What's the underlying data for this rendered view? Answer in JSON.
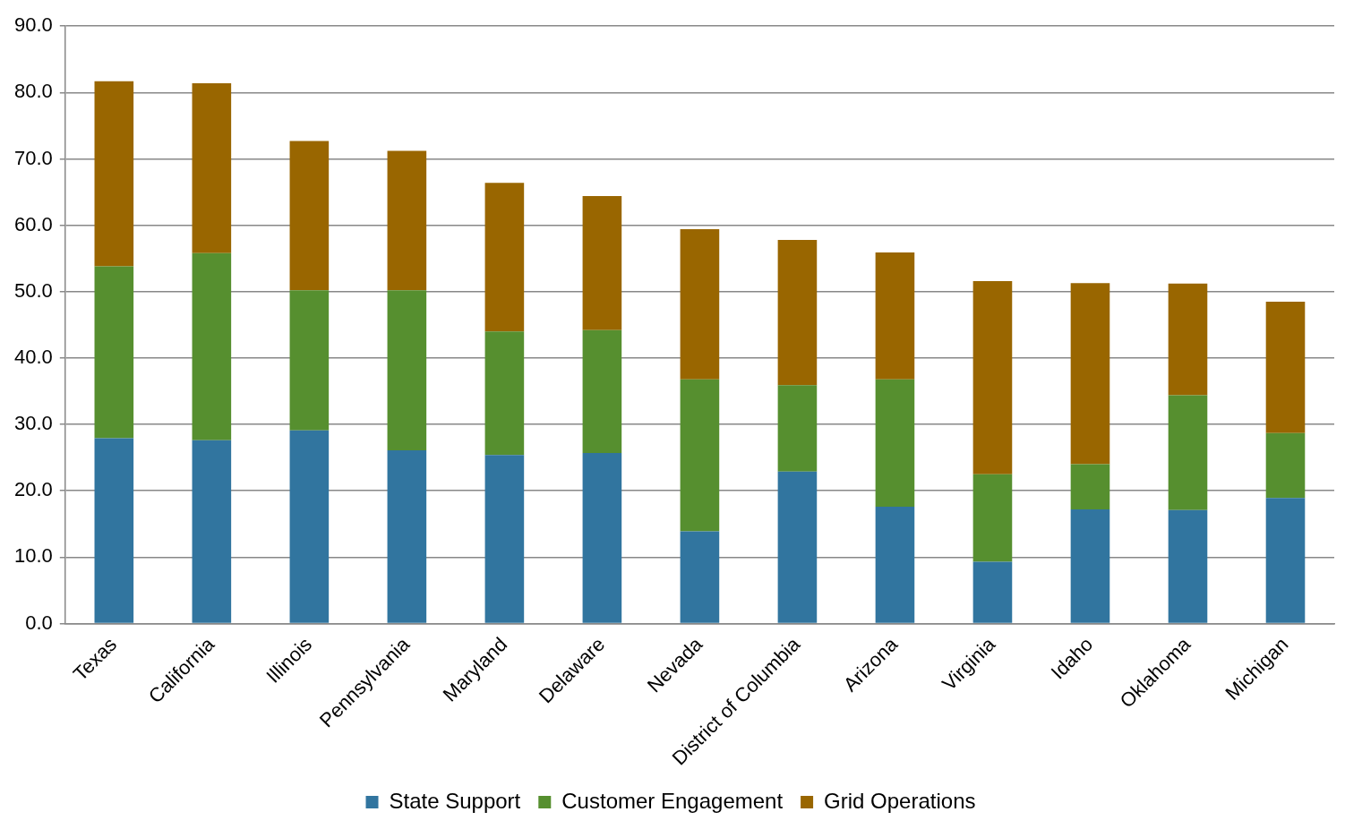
{
  "chart_data": {
    "type": "bar",
    "stacked": true,
    "categories": [
      "Texas",
      "California",
      "Illinois",
      "Pennsylvania",
      "Maryland",
      "Delaware",
      "Nevada",
      "District of Columbia",
      "Arizona",
      "Virginia",
      "Idaho",
      "Oklahoma",
      "Michigan"
    ],
    "series": [
      {
        "name": "State Support",
        "color": "#31759f",
        "values": [
          27.9,
          27.6,
          29.1,
          26.1,
          25.4,
          25.7,
          13.9,
          22.9,
          17.6,
          9.3,
          17.2,
          17.1,
          18.9
        ]
      },
      {
        "name": "Customer Engagement",
        "color": "#568f2f",
        "values": [
          25.9,
          28.2,
          21.1,
          24.1,
          18.6,
          18.5,
          22.9,
          13.0,
          19.2,
          13.2,
          6.8,
          17.3,
          9.8
        ]
      },
      {
        "name": "Grid Operations",
        "color": "#996600",
        "values": [
          27.9,
          25.6,
          22.5,
          21.0,
          22.4,
          20.2,
          22.6,
          21.9,
          19.1,
          29.1,
          27.3,
          16.8,
          19.8
        ]
      }
    ],
    "ylim": [
      0,
      90
    ],
    "yticks": [
      {
        "value": 0,
        "label": "0.0"
      },
      {
        "value": 10,
        "label": "10.0"
      },
      {
        "value": 20,
        "label": "20.0"
      },
      {
        "value": 30,
        "label": "30.0"
      },
      {
        "value": 40,
        "label": "40.0"
      },
      {
        "value": 50,
        "label": "50.0"
      },
      {
        "value": 60,
        "label": "60.0"
      },
      {
        "value": 70,
        "label": "70.0"
      },
      {
        "value": 80,
        "label": "80.0"
      },
      {
        "value": 90,
        "label": "90.0"
      }
    ],
    "grid": "y",
    "legend": "bottom"
  }
}
